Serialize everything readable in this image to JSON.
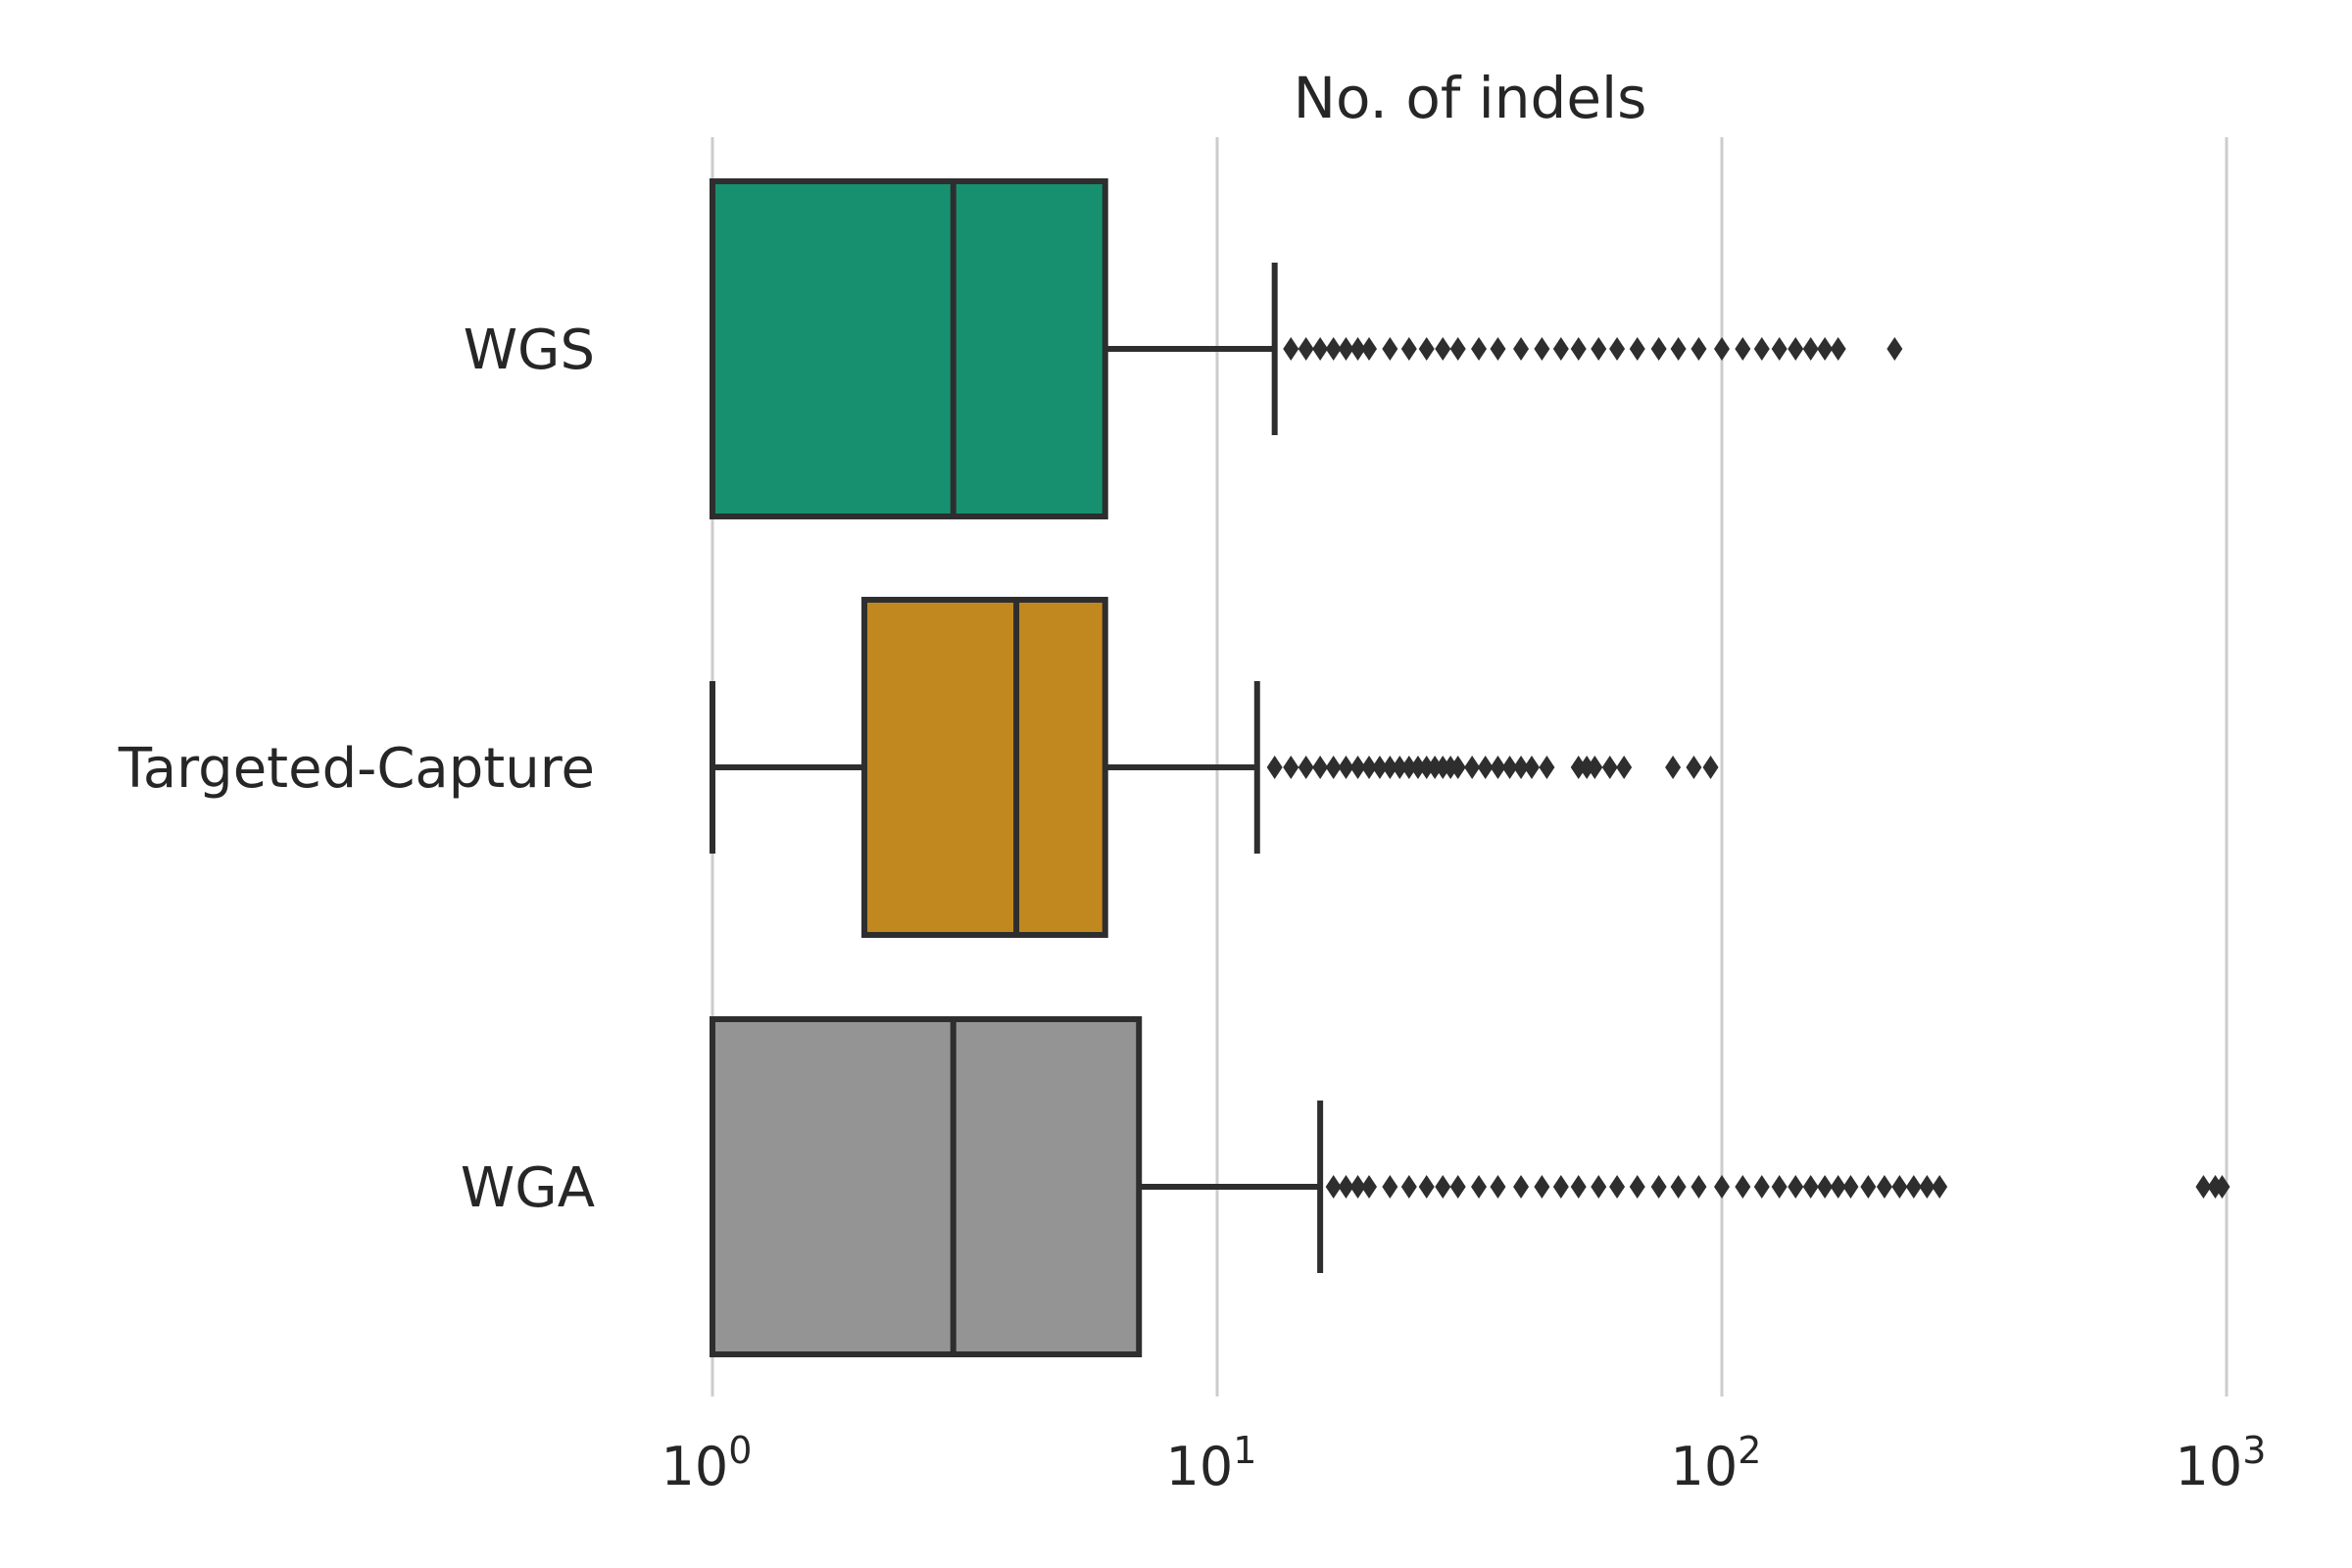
{
  "chart_data": {
    "type": "box",
    "orientation": "horizontal",
    "title": "No. of indels",
    "xlabel": "",
    "ylabel": "",
    "x_scale": "log",
    "xlim": [
      1,
      1000
    ],
    "grid": {
      "x": true,
      "y": false
    },
    "x_ticks": [
      {
        "base": "10",
        "exp": "0",
        "value": 1
      },
      {
        "base": "10",
        "exp": "1",
        "value": 10
      },
      {
        "base": "10",
        "exp": "2",
        "value": 100
      },
      {
        "base": "10",
        "exp": "3",
        "value": 1000
      }
    ],
    "categories": [
      "WGS",
      "Targeted-Capture",
      "WGA"
    ],
    "series": [
      {
        "category": "WGS",
        "color": "#179070",
        "whisker_low": 1,
        "q1": 1,
        "median": 3,
        "q3": 6,
        "whisker_high": 13,
        "outliers": [
          14,
          15,
          16,
          17,
          18,
          19,
          20,
          22,
          24,
          26,
          28,
          30,
          33,
          36,
          40,
          44,
          48,
          52,
          57,
          62,
          68,
          75,
          82,
          90,
          100,
          110,
          120,
          130,
          140,
          150,
          160,
          170,
          220
        ]
      },
      {
        "category": "Targeted-Capture",
        "color": "#c28820",
        "whisker_low": 1,
        "q1": 2,
        "median": 4,
        "q3": 6,
        "whisker_high": 12,
        "outliers": [
          13,
          14,
          15,
          16,
          17,
          18,
          19,
          20,
          21,
          22,
          23,
          24,
          25,
          26,
          27,
          28,
          29,
          30,
          32,
          34,
          36,
          38,
          40,
          42,
          45,
          52,
          54,
          56,
          60,
          64,
          80,
          88,
          95
        ]
      },
      {
        "category": "WGA",
        "color": "#949494",
        "whisker_low": 1,
        "q1": 1,
        "median": 3,
        "q3": 7,
        "whisker_high": 16,
        "outliers": [
          17,
          18,
          19,
          20,
          22,
          24,
          26,
          28,
          30,
          33,
          36,
          40,
          44,
          48,
          52,
          57,
          62,
          68,
          75,
          82,
          90,
          100,
          110,
          120,
          130,
          140,
          150,
          160,
          170,
          180,
          195,
          210,
          225,
          240,
          255,
          270,
          900,
          950,
          980
        ]
      }
    ]
  }
}
